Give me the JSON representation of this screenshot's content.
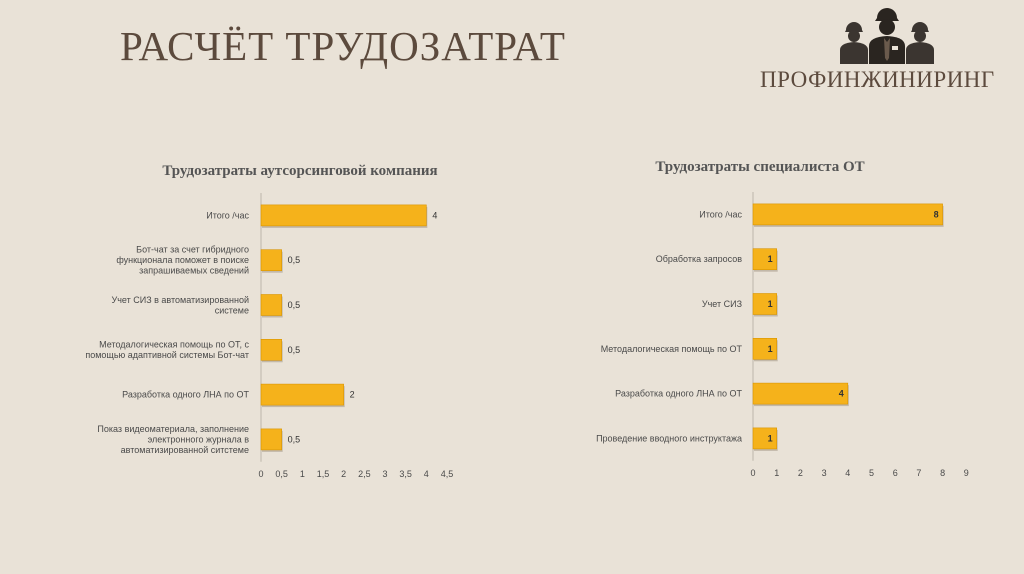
{
  "page": {
    "title": "РАСЧЁТ ТРУДОЗАТРАТ",
    "logo_text": "ПРОФИНЖИНИРИНГ"
  },
  "colors": {
    "bar": "#f5b21b",
    "bar_stroke": "#d99400",
    "axis": "#bdb6ab"
  },
  "chart_data": [
    {
      "type": "bar",
      "orientation": "horizontal",
      "title": "Трудозатраты аутсорсинговой компания",
      "categories": [
        "Итого /час",
        "Бот-чат за счет гибридного функционала поможет в поиске запрашиваемых сведений",
        "Учет СИЗ  в автоматизированной системе",
        "Методалогическая помощь по ОТ, с помощью адаптивной системы Бот-чат",
        "Разработка одного ЛНА по ОТ",
        "Показ видеоматериала, заполнение электронного журнала в автоматизированной ситстеме"
      ],
      "category_lines": [
        [
          "Итого /час"
        ],
        [
          "Бот-чат за счет гибридного",
          "функционала поможет в поиске",
          "запрашиваемых сведений"
        ],
        [
          "Учет СИЗ  в автоматизированной",
          "системе"
        ],
        [
          "Методалогическая помощь по ОТ, с",
          "помощью адаптивной системы Бот-чат"
        ],
        [
          "Разработка одного ЛНА по ОТ"
        ],
        [
          "Показ видеоматериала, заполнение",
          "электронного журнала в",
          "автоматизированной ситстеме"
        ]
      ],
      "values": [
        4,
        0.5,
        0.5,
        0.5,
        2,
        0.5
      ],
      "value_labels": [
        "4",
        "0,5",
        "0,5",
        "0,5",
        "2",
        "0,5"
      ],
      "xlim": [
        0,
        4.5
      ],
      "x_ticks": [
        0,
        0.5,
        1,
        1.5,
        2,
        2.5,
        3,
        3.5,
        4,
        4.5
      ],
      "x_tick_labels": [
        "0",
        "0,5",
        "1",
        "1,5",
        "2",
        "2,5",
        "3",
        "3,5",
        "4",
        "4,5"
      ],
      "label_position": "outside",
      "grid": false,
      "legend": false
    },
    {
      "type": "bar",
      "orientation": "horizontal",
      "title": "Трудозатраты специалиста ОТ",
      "categories": [
        "Итого /час",
        "Обработка запросов",
        "Учет СИЗ",
        "Методалогическая помощь по ОТ",
        "Разработка одного ЛНА по ОТ",
        "Проведение вводного инструктажа"
      ],
      "category_lines": [
        [
          "Итого /час"
        ],
        [
          "Обработка запросов"
        ],
        [
          "Учет СИЗ"
        ],
        [
          "Методалогическая помощь по ОТ"
        ],
        [
          "Разработка одного ЛНА по ОТ"
        ],
        [
          "Проведение вводного инструктажа"
        ]
      ],
      "values": [
        8,
        1,
        1,
        1,
        4,
        1
      ],
      "value_labels": [
        "8",
        "1",
        "1",
        "1",
        "4",
        "1"
      ],
      "xlim": [
        0,
        9
      ],
      "x_ticks": [
        0,
        1,
        2,
        3,
        4,
        5,
        6,
        7,
        8,
        9
      ],
      "x_tick_labels": [
        "0",
        "1",
        "2",
        "3",
        "4",
        "5",
        "6",
        "7",
        "8",
        "9"
      ],
      "label_position": "inside-end",
      "grid": false,
      "legend": false
    }
  ]
}
